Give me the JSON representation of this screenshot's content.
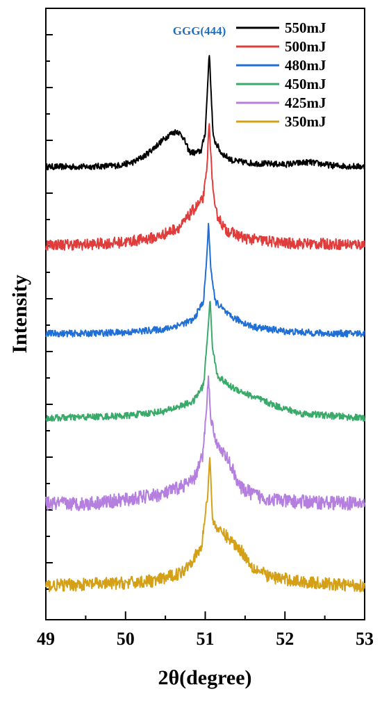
{
  "chart_data": {
    "type": "line",
    "xlabel": "2θ(degree)",
    "ylabel": "Intensity",
    "xlim": [
      49,
      53
    ],
    "x_ticks": [
      49,
      50,
      51,
      52,
      53
    ],
    "x_tick_labels": [
      "49",
      "50",
      "51",
      "52",
      "53"
    ],
    "y_tick_labels_visible": false,
    "grid": false,
    "legend_position": "top-right",
    "annotations": [
      {
        "text": "GGG(444)",
        "x": 51.0,
        "color": "#1f6fbf"
      }
    ],
    "series": [
      {
        "name": "550mJ",
        "color": "#000000",
        "noise": 2.2,
        "points": [
          [
            49.0,
            0
          ],
          [
            49.5,
            0
          ],
          [
            49.9,
            1
          ],
          [
            50.1,
            4
          ],
          [
            50.25,
            10
          ],
          [
            50.4,
            19
          ],
          [
            50.55,
            28
          ],
          [
            50.65,
            31
          ],
          [
            50.72,
            26
          ],
          [
            50.8,
            13
          ],
          [
            50.88,
            12
          ],
          [
            50.95,
            14
          ],
          [
            51.0,
            30
          ],
          [
            51.03,
            70
          ],
          [
            51.05,
            100
          ],
          [
            51.07,
            70
          ],
          [
            51.1,
            25
          ],
          [
            51.2,
            12
          ],
          [
            51.35,
            5
          ],
          [
            51.6,
            3
          ],
          [
            52.0,
            2
          ],
          [
            52.3,
            4
          ],
          [
            52.6,
            1
          ],
          [
            53.0,
            0
          ]
        ]
      },
      {
        "name": "500mJ",
        "color": "#e03c3c",
        "noise": 4,
        "points": [
          [
            49.0,
            0
          ],
          [
            49.5,
            0
          ],
          [
            50.0,
            2
          ],
          [
            50.4,
            6
          ],
          [
            50.7,
            15
          ],
          [
            50.85,
            28
          ],
          [
            50.97,
            36
          ],
          [
            51.02,
            60
          ],
          [
            51.05,
            100
          ],
          [
            51.08,
            60
          ],
          [
            51.12,
            28
          ],
          [
            51.25,
            12
          ],
          [
            51.5,
            5
          ],
          [
            52.0,
            1
          ],
          [
            53.0,
            0
          ]
        ]
      },
      {
        "name": "480mJ",
        "color": "#1f6fd6",
        "noise": 2.4,
        "points": [
          [
            49.0,
            0
          ],
          [
            49.5,
            0
          ],
          [
            50.0,
            1
          ],
          [
            50.5,
            4
          ],
          [
            50.85,
            12
          ],
          [
            50.98,
            30
          ],
          [
            51.02,
            70
          ],
          [
            51.04,
            100
          ],
          [
            51.07,
            60
          ],
          [
            51.12,
            30
          ],
          [
            51.3,
            16
          ],
          [
            51.6,
            6
          ],
          [
            52.0,
            2
          ],
          [
            52.5,
            0
          ],
          [
            53.0,
            0
          ]
        ]
      },
      {
        "name": "450mJ",
        "color": "#3aaa6a",
        "noise": 2.4,
        "points": [
          [
            49.0,
            0
          ],
          [
            49.5,
            1
          ],
          [
            50.0,
            2
          ],
          [
            50.5,
            6
          ],
          [
            50.85,
            14
          ],
          [
            50.98,
            28
          ],
          [
            51.03,
            70
          ],
          [
            51.06,
            100
          ],
          [
            51.09,
            60
          ],
          [
            51.15,
            36
          ],
          [
            51.3,
            27
          ],
          [
            51.6,
            18
          ],
          [
            51.9,
            10
          ],
          [
            52.2,
            4
          ],
          [
            52.6,
            2
          ],
          [
            53.0,
            0
          ]
        ]
      },
      {
        "name": "425mJ",
        "color": "#b57fe0",
        "noise": 5,
        "points": [
          [
            49.0,
            0
          ],
          [
            49.5,
            0
          ],
          [
            50.0,
            3
          ],
          [
            50.5,
            8
          ],
          [
            50.85,
            18
          ],
          [
            50.97,
            38
          ],
          [
            51.02,
            80
          ],
          [
            51.04,
            100
          ],
          [
            51.07,
            68
          ],
          [
            51.14,
            48
          ],
          [
            51.3,
            33
          ],
          [
            51.45,
            12
          ],
          [
            51.7,
            5
          ],
          [
            52.0,
            2
          ],
          [
            53.0,
            0
          ]
        ]
      },
      {
        "name": "350mJ",
        "color": "#d4a017",
        "noise": 4.5,
        "points": [
          [
            49.0,
            0
          ],
          [
            49.5,
            1
          ],
          [
            50.0,
            2
          ],
          [
            50.4,
            4
          ],
          [
            50.7,
            10
          ],
          [
            50.95,
            28
          ],
          [
            51.03,
            70
          ],
          [
            51.06,
            100
          ],
          [
            51.09,
            50
          ],
          [
            51.15,
            44
          ],
          [
            51.3,
            36
          ],
          [
            51.45,
            27
          ],
          [
            51.6,
            14
          ],
          [
            51.8,
            7
          ],
          [
            52.2,
            3
          ],
          [
            52.6,
            1
          ],
          [
            53.0,
            0
          ]
        ]
      }
    ]
  }
}
